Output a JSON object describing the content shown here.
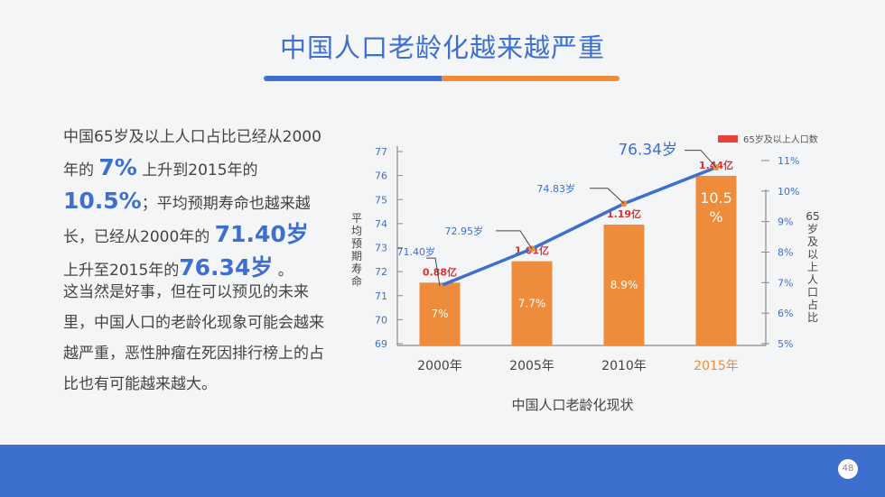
{
  "slide": {
    "title": "中国人口老龄化越来越严重",
    "page_number": "48"
  },
  "text": {
    "p1": {
      "s1": "中国65岁及以上人口占比已经从2000年的",
      "v1": "7%",
      "s2": "上升到2015年的",
      "v2": "10.5%",
      "s3": "；平均预期寿命也越来越长，已经从2000年的",
      "v3": "71.40岁",
      "s4": "上升至2015年的",
      "v4": "76.34岁",
      "s5": "。"
    },
    "p2": "这当然是好事，但在可以预见的未来里，中国人口的老龄化现象可能会越来越严重，恶性肿瘤在死因排行榜上的占比也有可能越来越大。"
  },
  "colors": {
    "accent_blue": "#3d6fcf",
    "accent_orange": "#ef8c3b",
    "bar_label_red": "#e02f2f",
    "legend_red": "#e8413a"
  },
  "chart_data": {
    "type": "bar",
    "title": "中国人口老龄化现状",
    "categories": [
      "2000年",
      "2005年",
      "2010年",
      "2015年"
    ],
    "highlight_category": "2015年",
    "left_axis": {
      "label": "平均预期寿命",
      "range": [
        69,
        77
      ],
      "ticks": [
        "69",
        "70",
        "71",
        "72",
        "73",
        "74",
        "75",
        "76",
        "77"
      ]
    },
    "right_axis": {
      "label": "65岁及以上人口占比",
      "range": [
        5,
        11
      ],
      "ticks": [
        "5%",
        "6%",
        "7%",
        "8%",
        "9%",
        "10%",
        "11%"
      ]
    },
    "bars": {
      "legend": "65岁及以上人口数",
      "values_pct": [
        7,
        7.7,
        8.9,
        10.5
      ],
      "inner_labels": [
        "7%",
        "7.7%",
        "8.9%",
        "10.5\n%"
      ],
      "top_labels": [
        "0.88亿",
        "1.01亿",
        "1.19亿",
        "1.44亿"
      ]
    },
    "line": {
      "values": [
        71.4,
        72.95,
        74.83,
        76.34
      ],
      "labels": [
        "71.40岁",
        "72.95岁",
        "74.83岁",
        "76.34岁"
      ]
    },
    "legend_position": "top-right"
  }
}
